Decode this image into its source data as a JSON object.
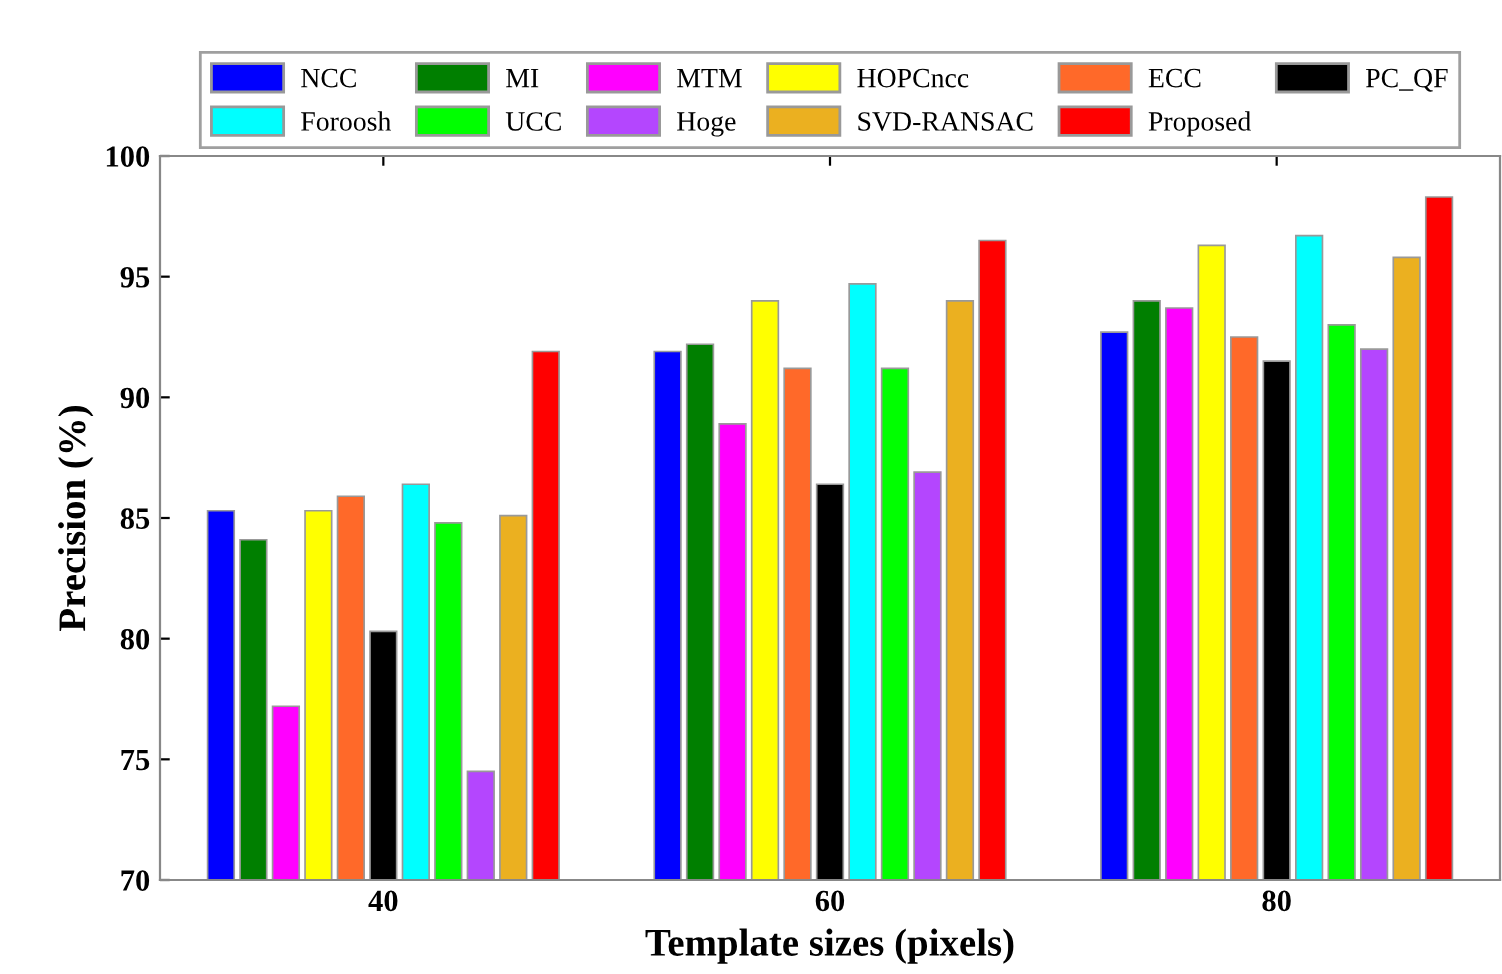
{
  "chart_data": {
    "type": "bar",
    "xlabel": "Template sizes (pixels)",
    "ylabel": "Precision (%)",
    "categories": [
      "40",
      "60",
      "80"
    ],
    "series": [
      {
        "name": "NCC",
        "color": "#0000ff",
        "values": [
          85.3,
          91.9,
          92.7
        ]
      },
      {
        "name": "MI",
        "color": "#007f00",
        "values": [
          84.1,
          92.2,
          94.0
        ]
      },
      {
        "name": "MTM",
        "color": "#ff00ff",
        "values": [
          77.2,
          88.9,
          93.7
        ]
      },
      {
        "name": "HOPCncc",
        "color": "#ffff00",
        "values": [
          85.3,
          94.0,
          96.3
        ]
      },
      {
        "name": "ECC",
        "color": "#ff6929",
        "values": [
          85.9,
          91.2,
          92.5
        ]
      },
      {
        "name": "PC_QF",
        "color": "#000000",
        "values": [
          80.3,
          86.4,
          91.5
        ]
      },
      {
        "name": "Foroosh",
        "color": "#00ffff",
        "values": [
          86.4,
          94.7,
          96.7
        ]
      },
      {
        "name": "UCC",
        "color": "#00ff00",
        "values": [
          84.8,
          91.2,
          93.0
        ]
      },
      {
        "name": "Hoge",
        "color": "#b446fe",
        "values": [
          74.5,
          86.9,
          92.0
        ]
      },
      {
        "name": "SVD-RANSAC",
        "color": "#ebb020",
        "values": [
          85.1,
          94.0,
          95.8
        ]
      },
      {
        "name": "Proposed",
        "color": "#ff0000",
        "values": [
          91.9,
          96.5,
          98.3
        ]
      }
    ],
    "ylim": [
      70,
      100
    ],
    "yticks": [
      70,
      75,
      80,
      85,
      90,
      95,
      100
    ],
    "grid": false,
    "legend": "top"
  }
}
